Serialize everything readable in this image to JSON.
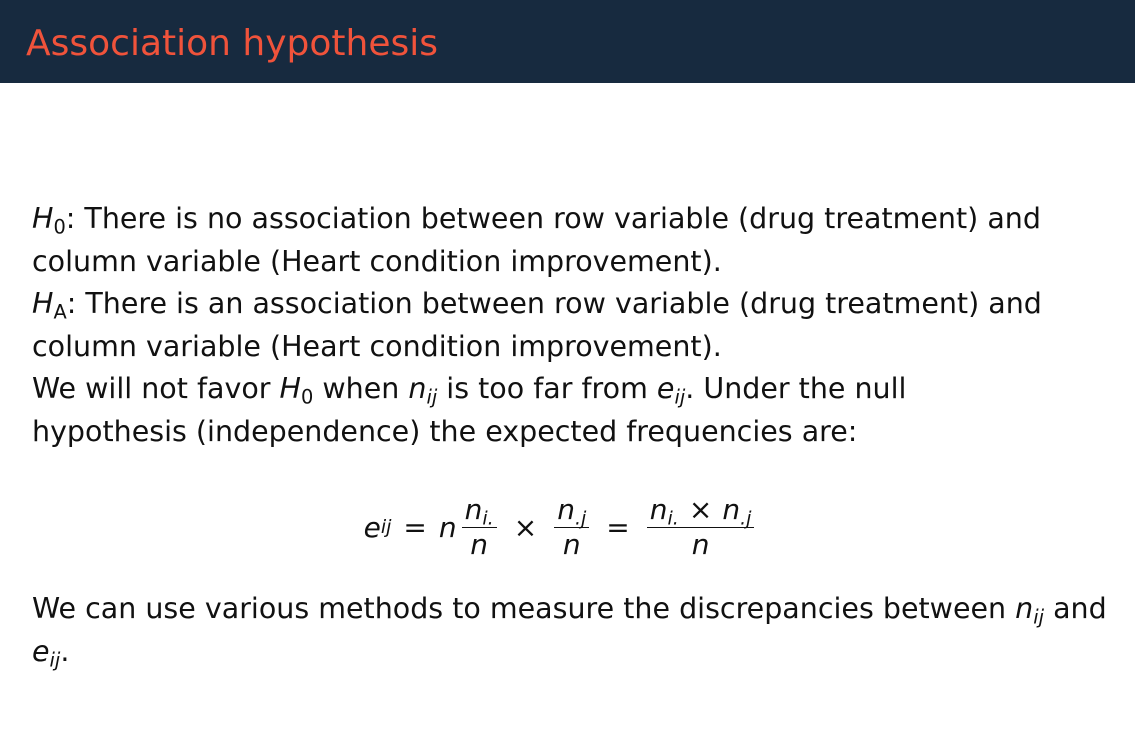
{
  "slide": {
    "title": "Association hypothesis"
  },
  "body": {
    "h0_symbol": "H",
    "h0_sub": "0",
    "h0_line1": ": There is no association between row variable (drug treatment) and",
    "h0_line2": "column variable (Heart condition improvement).",
    "ha_symbol": "H",
    "ha_sub": "A",
    "ha_line1": ": There is an association between row variable (drug treatment) and",
    "ha_line2": "column variable (Heart condition improvement).",
    "favor_pre": "We will not favor ",
    "favor_h": "H",
    "favor_h_sub": "0",
    "favor_mid": " when ",
    "n": "n",
    "ij": "ij",
    "favor_mid2": " is too far from ",
    "e": "e",
    "favor_post": ". Under the null",
    "null_line": "hypothesis (independence) the expected frequencies are:"
  },
  "formula": {
    "lhs_var": "e",
    "lhs_sub": "ij",
    "equals": "=",
    "coef": "n",
    "frac1_num_var": "n",
    "frac1_num_sub": "i.",
    "frac1_den": "n",
    "times": "×",
    "frac2_num_var": "n",
    "frac2_num_sub": ".j",
    "frac2_den": "n",
    "frac3_den": "n"
  },
  "closing": {
    "line1_pre": "We can use various methods to measure the discrepancies between ",
    "n": "n",
    "ij": "ij",
    "line1_post": " and",
    "line2_var": "e",
    "line2_sub": "ij",
    "line2_post": "."
  }
}
